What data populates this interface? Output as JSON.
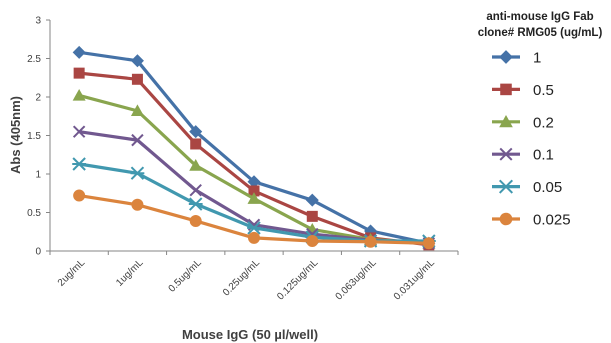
{
  "chart_data": {
    "type": "line",
    "title": "",
    "xlabel": "Mouse IgG (50 µl/well)",
    "ylabel": "Abs (405nm)",
    "ylim": [
      0,
      3
    ],
    "yticks": [
      "0",
      "0.5",
      "1",
      "1.5",
      "2",
      "2.5",
      "3"
    ],
    "categories": [
      "2ug/mL",
      "1ug/mL",
      "0.5ug/mL",
      "0.25ug/mL",
      "0.125ug/mL",
      "0.063ug/mL",
      "0.031ug/mL"
    ],
    "grid": false,
    "legend": {
      "placement": "right",
      "title_lines": [
        "anti-mouse IgG Fab",
        "clone# RMG05 (ug/mL)"
      ]
    },
    "series": [
      {
        "name": "1",
        "color": "#4572A7",
        "marker": "diamond",
        "values": [
          2.58,
          2.47,
          1.55,
          0.9,
          0.66,
          0.26,
          0.1
        ]
      },
      {
        "name": "0.5",
        "color": "#AA4643",
        "marker": "square",
        "values": [
          2.31,
          2.23,
          1.39,
          0.78,
          0.45,
          0.17,
          0.08
        ]
      },
      {
        "name": "0.2",
        "color": "#89A54E",
        "marker": "triangle",
        "values": [
          2.02,
          1.82,
          1.11,
          0.68,
          0.28,
          0.15,
          0.1
        ]
      },
      {
        "name": "0.1",
        "color": "#71588F",
        "marker": "x",
        "values": [
          1.55,
          1.44,
          0.79,
          0.34,
          0.22,
          0.14,
          0.1
        ]
      },
      {
        "name": "0.05",
        "color": "#4198AF",
        "marker": "asterisk",
        "values": [
          1.13,
          1.01,
          0.61,
          0.3,
          0.18,
          0.13,
          0.13
        ]
      },
      {
        "name": "0.025",
        "color": "#DB843D",
        "marker": "circle",
        "values": [
          0.72,
          0.6,
          0.39,
          0.17,
          0.13,
          0.12,
          0.1
        ]
      }
    ]
  }
}
